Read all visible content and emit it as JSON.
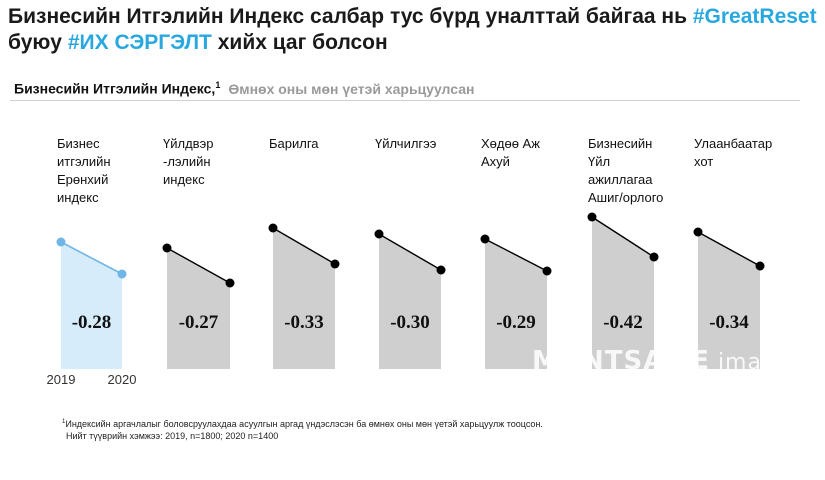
{
  "header": {
    "title_part1": "Бизнесийн Итгэлийн Индекс салбар тус бүрд уналттай байгаа нь ",
    "title_hashtag1": "#GreatReset",
    "title_part2": " буюу ",
    "title_hashtag2": "#ИХ СЭРГЭЛТ",
    "title_part3": " хийх цаг болсон",
    "subtitle_main": "Бизнесийн Итгэлийн Индекс,",
    "subtitle_sup": "1",
    "subtitle_secondary": "Өмнөх оны мөн үетэй харьцуулсан"
  },
  "colors": {
    "accent": "#29a8e0",
    "highlight_fill": "#d6ecfb",
    "highlight_line": "#6fb5e6",
    "bar_fill": "#cfcfcf",
    "line": "#000000"
  },
  "watermark": {
    "part1": "MONTSAME",
    "part2": " images"
  },
  "footnote": {
    "sup": "1",
    "line1": "Индексийн аргачлалыг боловсруулахдаа асуулгын аргад үндэслэсэн ба өмнөх оны мөн үетэй харьцуулж тооцсон.",
    "line2": "Нийт түүврийн хэмжээ: 2019, n=1800; 2020 n=1400"
  },
  "chart_data": {
    "type": "line",
    "x": [
      "2019",
      "2020"
    ],
    "categories": [
      "Бизнес итгэлийн Ерөнхий индекс",
      "Үйлдвэр -лэлийн индекс",
      "Барилга",
      "Үйлчилгээ",
      "Хөдөө Аж Ахуй",
      "Бизнесийн Үйл ажиллагаа Ашиг/орлого",
      "Улаанбаатар хот"
    ],
    "category_label_lines": [
      [
        "Бизнес",
        "итгэлийн",
        "Ерөнхий",
        "индекс"
      ],
      [
        "Үйлдвэр",
        "-лэлийн",
        "индекс"
      ],
      [
        "Барилга"
      ],
      [
        "Үйлчилгээ"
      ],
      [
        "Хөдөө Аж",
        "Ахуй"
      ],
      [
        "Бизнесийн",
        "Үйл",
        "ажиллагаа",
        "Ашиг/орлого"
      ],
      [
        "Улаанбаатар",
        "хот"
      ]
    ],
    "changes": [
      "-0.28",
      "-0.27",
      "-0.33",
      "-0.30",
      "-0.29",
      "-0.42",
      "-0.34"
    ],
    "highlighted_index": 0
  }
}
